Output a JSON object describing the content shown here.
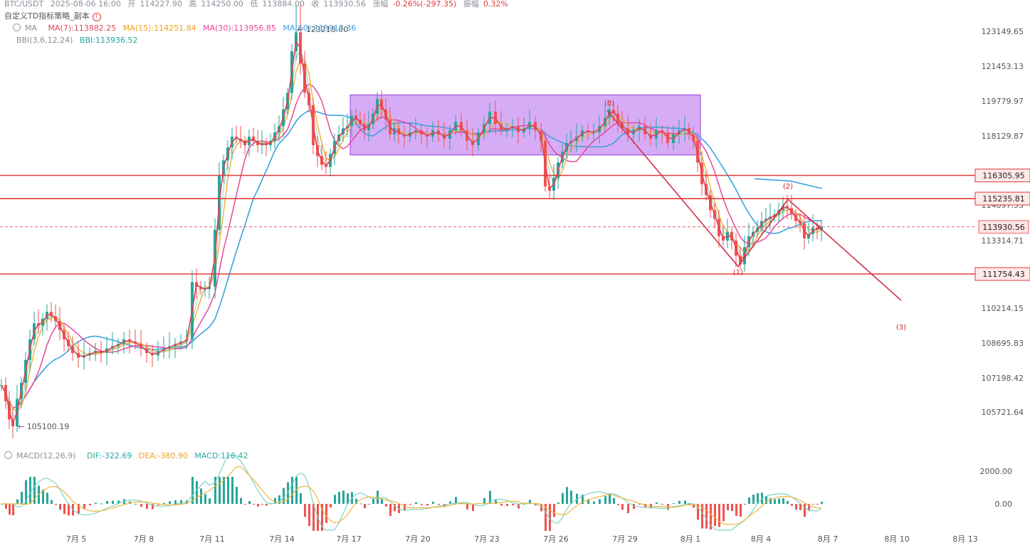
{
  "header": {
    "symbol": "BTC/USDT",
    "datetime": "2025-08-06 16:00",
    "open_label": "开",
    "open": "114227.90",
    "high_label": "高",
    "high": "114250.00",
    "low_label": "低",
    "low": "113884.00",
    "close_label": "收",
    "close": "113930.56",
    "change_label": "涨幅",
    "change": "-0.26%(-297.35)",
    "amp_label": "振幅",
    "amp": "0.32%",
    "strategy": "自定义TD指标策略_副本"
  },
  "ma_legend": {
    "title": "MA",
    "ma7": "MA(7):113882.25",
    "ma15": "MA(15):114251.84",
    "ma30": "MA(30):113956.85",
    "ma60": "MA(60):115917.36",
    "bbi_title": "BBI(3,6,12,24)",
    "bbi": "BBI:113936.52"
  },
  "macd_legend": {
    "title": "MACD(12,26,9)",
    "dif": "DIF:-322.69",
    "dea": "DEA:-380.90",
    "macd": "MACD:116.42"
  },
  "colors": {
    "up": "#26a69a",
    "down": "#ef5350",
    "ma7": "#e0455a",
    "ma15": "#f2b33b",
    "ma30": "#e8489a",
    "ma60": "#3aa3e0",
    "bbi": "#9fd9c9",
    "hline": "#e03b3b",
    "box": "#b667f0"
  },
  "chart_data": {
    "type": "candlestick",
    "y_ticks": [
      "123149.65",
      "121453.13",
      "119779.97",
      "118129.87",
      "114897.55",
      "113314.71",
      "110214.15",
      "108695.83",
      "107198.42",
      "105721.64"
    ],
    "x_ticks": [
      "7月 5",
      "7月 8",
      "7月 11",
      "7月 14",
      "7月 17",
      "7月 20",
      "7月 23",
      "7月 26",
      "7月 29",
      "8月 1",
      "8月 4",
      "8月 7",
      "8月 10",
      "8月 13"
    ],
    "high_marker": "123218.00",
    "low_marker": "105100.19",
    "horizontal_levels": [
      "116305.95",
      "115235.81",
      "111754.43"
    ],
    "current_price": "113930.56",
    "consolidation_box": {
      "from": "7月 17",
      "to": "7月 31",
      "top": 120100,
      "bottom": 117250
    },
    "wave_labels": [
      "(8)",
      "(1)",
      "(2)",
      "(3)"
    ],
    "macd_ticks": [
      "2000.00",
      "0.00"
    ],
    "price_path": [
      [
        0,
        106900
      ],
      [
        6,
        106200
      ],
      [
        11,
        105400
      ],
      [
        16,
        105100
      ],
      [
        22,
        106300
      ],
      [
        28,
        107000
      ],
      [
        34,
        108000
      ],
      [
        40,
        108900
      ],
      [
        46,
        109600
      ],
      [
        52,
        109500
      ],
      [
        58,
        109800
      ],
      [
        64,
        110100
      ],
      [
        70,
        109900
      ],
      [
        76,
        109700
      ],
      [
        82,
        109300
      ],
      [
        88,
        108900
      ],
      [
        94,
        108600
      ],
      [
        100,
        108300
      ],
      [
        108,
        108100
      ],
      [
        116,
        108200
      ],
      [
        124,
        108300
      ],
      [
        132,
        108400
      ],
      [
        140,
        108300
      ],
      [
        148,
        108500
      ],
      [
        156,
        108600
      ],
      [
        164,
        108700
      ],
      [
        172,
        108900
      ],
      [
        180,
        108800
      ],
      [
        188,
        108700
      ],
      [
        196,
        108500
      ],
      [
        204,
        108300
      ],
      [
        212,
        108200
      ],
      [
        220,
        108400
      ],
      [
        228,
        108500
      ],
      [
        236,
        108600
      ],
      [
        244,
        108700
      ],
      [
        252,
        108800
      ],
      [
        260,
        108900
      ],
      [
        268,
        111400
      ],
      [
        274,
        111200
      ],
      [
        280,
        111100
      ],
      [
        286,
        111100
      ],
      [
        292,
        111200
      ],
      [
        300,
        113800
      ],
      [
        306,
        116300
      ],
      [
        312,
        117000
      ],
      [
        318,
        117600
      ],
      [
        324,
        118100
      ],
      [
        330,
        118000
      ],
      [
        336,
        117900
      ],
      [
        342,
        117700
      ],
      [
        348,
        118100
      ],
      [
        354,
        117900
      ],
      [
        360,
        117700
      ],
      [
        366,
        117800
      ],
      [
        372,
        117700
      ],
      [
        378,
        117900
      ],
      [
        384,
        118300
      ],
      [
        390,
        118600
      ],
      [
        396,
        119400
      ],
      [
        402,
        120200
      ],
      [
        408,
        122200
      ],
      [
        414,
        123100
      ],
      [
        420,
        121600
      ],
      [
        426,
        120200
      ],
      [
        432,
        119600
      ],
      [
        438,
        117700
      ],
      [
        444,
        117200
      ],
      [
        450,
        116800
      ],
      [
        456,
        116700
      ],
      [
        462,
        117300
      ],
      [
        468,
        117900
      ],
      [
        474,
        118200
      ],
      [
        480,
        118500
      ],
      [
        486,
        118600
      ],
      [
        492,
        119100
      ],
      [
        498,
        118900
      ],
      [
        504,
        118700
      ],
      [
        510,
        118400
      ],
      [
        516,
        118700
      ],
      [
        522,
        119200
      ],
      [
        528,
        119900
      ],
      [
        534,
        119400
      ],
      [
        540,
        118900
      ],
      [
        546,
        118200
      ],
      [
        552,
        118500
      ],
      [
        558,
        118200
      ],
      [
        566,
        118100
      ],
      [
        574,
        118300
      ],
      [
        582,
        118400
      ],
      [
        590,
        118200
      ],
      [
        598,
        118100
      ],
      [
        606,
        118400
      ],
      [
        614,
        118200
      ],
      [
        622,
        118000
      ],
      [
        630,
        118400
      ],
      [
        638,
        118800
      ],
      [
        646,
        118400
      ],
      [
        654,
        117900
      ],
      [
        662,
        117700
      ],
      [
        670,
        118300
      ],
      [
        678,
        118700
      ],
      [
        686,
        119300
      ],
      [
        694,
        118700
      ],
      [
        702,
        118400
      ],
      [
        710,
        118500
      ],
      [
        718,
        118600
      ],
      [
        726,
        118300
      ],
      [
        734,
        118500
      ],
      [
        742,
        118800
      ],
      [
        750,
        118400
      ],
      [
        758,
        117900
      ],
      [
        764,
        115800
      ],
      [
        770,
        115600
      ],
      [
        776,
        116200
      ],
      [
        782,
        116900
      ],
      [
        788,
        117400
      ],
      [
        794,
        117800
      ],
      [
        800,
        117900
      ],
      [
        808,
        118100
      ],
      [
        816,
        118400
      ],
      [
        824,
        118300
      ],
      [
        832,
        118300
      ],
      [
        840,
        118600
      ],
      [
        848,
        119000
      ],
      [
        854,
        119400
      ],
      [
        860,
        119200
      ],
      [
        866,
        118800
      ],
      [
        872,
        118500
      ],
      [
        880,
        118200
      ],
      [
        888,
        118400
      ],
      [
        896,
        118600
      ],
      [
        904,
        118200
      ],
      [
        912,
        118000
      ],
      [
        920,
        118400
      ],
      [
        928,
        118300
      ],
      [
        936,
        117800
      ],
      [
        944,
        118200
      ],
      [
        952,
        118400
      ],
      [
        960,
        118500
      ],
      [
        966,
        118200
      ],
      [
        972,
        117900
      ],
      [
        978,
        116900
      ],
      [
        984,
        115900
      ],
      [
        990,
        115400
      ],
      [
        996,
        114700
      ],
      [
        1002,
        114300
      ],
      [
        1008,
        113500
      ],
      [
        1014,
        113300
      ],
      [
        1020,
        113700
      ],
      [
        1026,
        113300
      ],
      [
        1032,
        112600
      ],
      [
        1038,
        112200
      ],
      [
        1044,
        113000
      ],
      [
        1050,
        113500
      ],
      [
        1056,
        113700
      ],
      [
        1062,
        113900
      ],
      [
        1068,
        114200
      ],
      [
        1074,
        114300
      ],
      [
        1080,
        114400
      ],
      [
        1086,
        114500
      ],
      [
        1092,
        114700
      ],
      [
        1098,
        114900
      ],
      [
        1104,
        114800
      ],
      [
        1110,
        114500
      ],
      [
        1116,
        114200
      ],
      [
        1122,
        114100
      ],
      [
        1128,
        113400
      ],
      [
        1134,
        113600
      ],
      [
        1140,
        113900
      ],
      [
        1146,
        113800
      ],
      [
        1152,
        113930
      ]
    ]
  }
}
